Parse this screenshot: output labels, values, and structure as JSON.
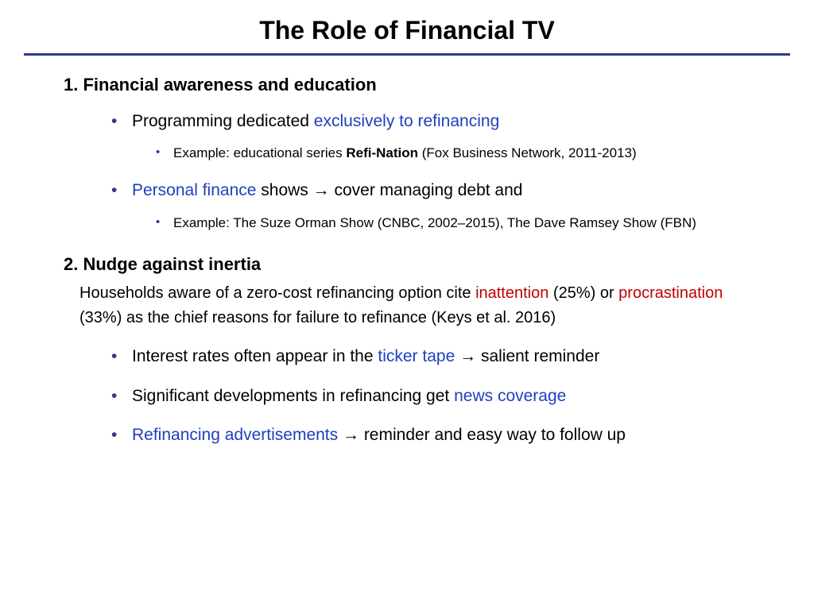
{
  "colors": {
    "rule": "#2b3a8f",
    "bullet": "#2b3a8f",
    "highlight_blue": "#1f3fbf",
    "highlight_red": "#c00000",
    "text": "#000000",
    "background": "#ffffff"
  },
  "typography": {
    "title_size": 32,
    "section_size": 22,
    "body_size": 21,
    "sub_size": 17,
    "family": "Arial"
  },
  "title": "The Role of Financial TV",
  "section1": {
    "heading": "1. Financial awareness and education",
    "b1_pre": "Programming dedicated ",
    "b1_blue": "exclusively to refinancing",
    "b1_sub_pre": "Example: educational series ",
    "b1_sub_bold": "Refi-Nation",
    "b1_sub_post": " (Fox Business Network, 2011-2013)",
    "b2_blue": "Personal finance",
    "b2_mid": " shows ",
    "b2_arrow": "→",
    "b2_post": " cover managing debt and",
    "b2_sub": "Example: The Suze Orman Show (CNBC, 2002–2015), The Dave Ramsey Show (FBN)"
  },
  "section2": {
    "heading": "2. Nudge against inertia",
    "para_1": "Households aware of a zero-cost refinancing option cite ",
    "para_red1": "inattention",
    "para_2": " (25%) or ",
    "para_red2": "procrastination",
    "para_3": " (33%) as the chief reasons for failure to refinance (Keys et al. 2016)",
    "b1_pre": "Interest rates often appear in the ",
    "b1_blue": "ticker tape",
    "b1_arrow": " → ",
    "b1_post": "salient reminder",
    "b2_pre": "Significant developments in refinancing get ",
    "b2_blue": "news coverage",
    "b3_blue": "Refinancing advertisements",
    "b3_arrow": " → ",
    "b3_post": "reminder and easy way to follow up"
  }
}
